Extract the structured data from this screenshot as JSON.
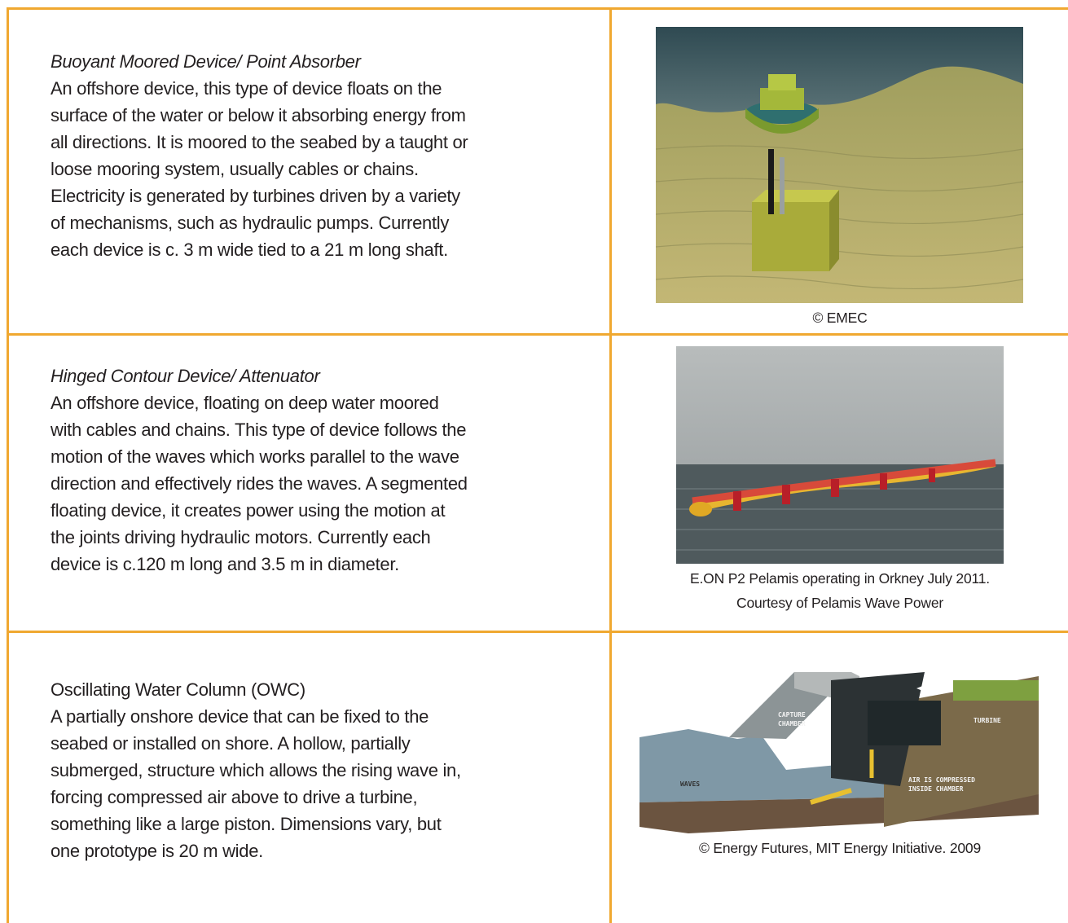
{
  "rows": [
    {
      "title": "Buoyant Moored Device/ Point Absorber",
      "lines": [
        "An offshore device, this type of device floats on the",
        "surface of the water or below it absorbing energy from",
        "all directions. It is moored to the seabed by a taught or",
        "loose mooring system, usually cables or chains.",
        "Electricity is generated by turbines driven by a variety",
        "of mechanisms, such as hydraulic pumps. Currently",
        "each device is c. 3 m wide tied to a 21 m long shaft."
      ],
      "caption": [
        "© EMEC"
      ]
    },
    {
      "title": "Hinged Contour Device/ Attenuator",
      "lines": [
        "An offshore device, floating on deep water moored",
        "with cables and chains. This type of device follows the",
        "motion of the waves which works parallel to the wave",
        "direction and effectively rides the waves. A segmented",
        "floating device, it creates power using the motion at",
        "the joints driving hydraulic motors. Currently each",
        "device is c.120 m long and 3.5 m in diameter."
      ],
      "caption": [
        "E.ON P2 Pelamis operating in Orkney July 2011.",
        "Courtesy of Pelamis Wave Power"
      ]
    },
    {
      "title": "Oscillating Water Column (OWC)",
      "lines": [
        "A partially onshore device that can be fixed to the",
        "seabed or installed on shore. A hollow, partially",
        "submerged, structure which allows the rising wave in,",
        "forcing compressed air above to drive a turbine,",
        "something like a large piston. Dimensions vary, but",
        "one prototype is 20 m wide."
      ],
      "caption": [
        "© Energy Futures, MIT Energy Initiative. 2009"
      ],
      "image_labels": [
        "CAPTURE",
        "CHAMBER",
        "TURBINE",
        "AIR IS COMPRESSED",
        "INSIDE CHAMBER",
        "WAVES"
      ]
    }
  ]
}
